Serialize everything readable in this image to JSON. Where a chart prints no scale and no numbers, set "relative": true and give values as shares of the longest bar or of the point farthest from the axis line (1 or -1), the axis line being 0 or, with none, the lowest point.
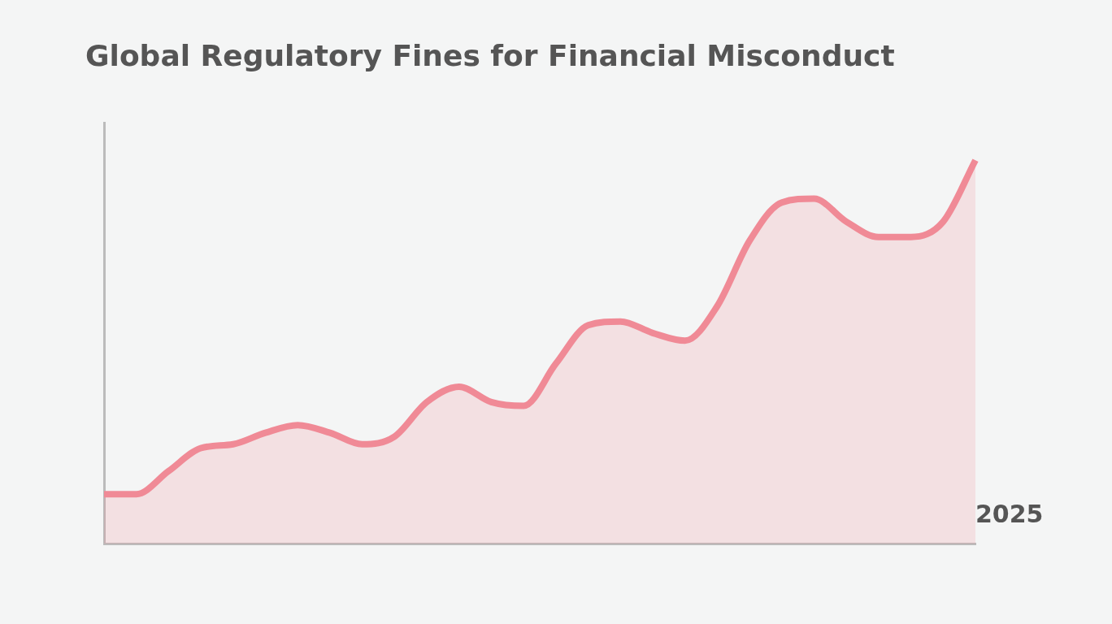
{
  "chart_data": {
    "type": "area",
    "title": "Global Regulatory Fines for Financial Misconduct",
    "relative": true,
    "categories": [
      null,
      null,
      null,
      null,
      null,
      null,
      null,
      null,
      null,
      null,
      null,
      null,
      null,
      null,
      null,
      null,
      null,
      null,
      null,
      null,
      null,
      null,
      null,
      null,
      null,
      null,
      null,
      null
    ],
    "series": [
      {
        "color": "#f08a96",
        "values": [
          0.13,
          0.13,
          0.19,
          0.25,
          0.26,
          0.29,
          0.31,
          0.29,
          0.26,
          0.28,
          0.37,
          0.41,
          0.37,
          0.36,
          0.47,
          0.57,
          0.58,
          0.55,
          0.53,
          0.62,
          0.79,
          0.89,
          0.9,
          0.84,
          0.8,
          0.8,
          0.84,
          1
        ]
      }
    ],
    "annotations": [
      "2025"
    ],
    "grid": false,
    "legend": false
  }
}
